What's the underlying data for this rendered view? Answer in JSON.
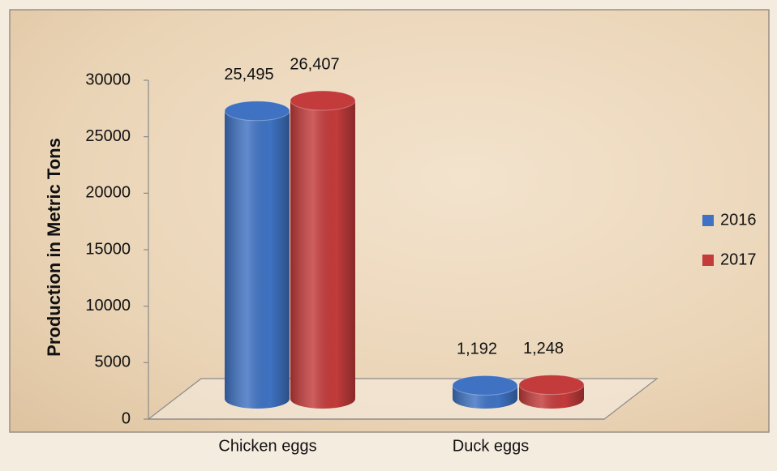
{
  "chart_data": {
    "type": "bar3d",
    "y_label": "Production in Metric Tons",
    "categories": [
      "Chicken eggs",
      "Duck eggs"
    ],
    "series": [
      {
        "name": "2016",
        "color": "#3f72c2",
        "values": [
          25495,
          1192
        ],
        "value_labels": [
          "25,495",
          "1,192"
        ]
      },
      {
        "name": "2017",
        "color": "#c33b3b",
        "values": [
          26407,
          1248
        ],
        "value_labels": [
          "26,407",
          "1,248"
        ]
      }
    ],
    "ylim": [
      0,
      30000
    ],
    "yticks": [
      0,
      5000,
      10000,
      15000,
      20000,
      25000,
      30000
    ],
    "legend": "right"
  }
}
